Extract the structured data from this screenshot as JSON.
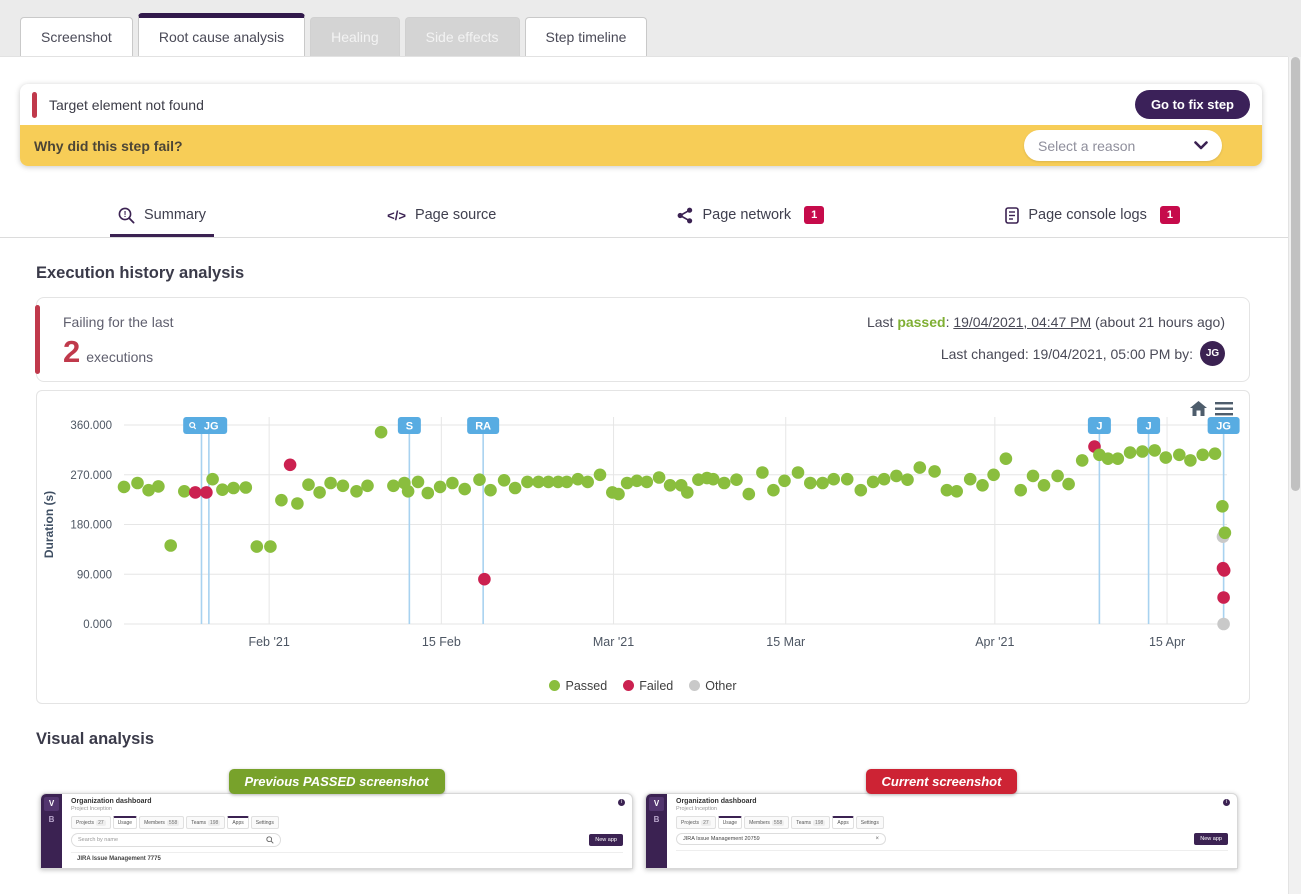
{
  "colors": {
    "accent_purple": "#3b2252",
    "tab_active_border": "#31194b",
    "alert_red": "#c0394b",
    "badge_red": "#c60b4b",
    "banner_yellow": "#f7cd57",
    "passed_green": "#8abe3e",
    "failed_red": "#cb2150",
    "other_gray": "#c9c9c9",
    "event_line_blue": "#7fbce9",
    "event_label_blue": "#58ace2",
    "prev_badge_green": "#78a22b",
    "curr_badge_red": "#cd2334"
  },
  "tabs": {
    "items": [
      {
        "label": "Screenshot",
        "state": "normal"
      },
      {
        "label": "Root cause analysis",
        "state": "active"
      },
      {
        "label": "Healing",
        "state": "disabled"
      },
      {
        "label": "Side effects",
        "state": "disabled"
      },
      {
        "label": "Step timeline",
        "state": "normal"
      }
    ]
  },
  "alert": {
    "message": "Target element not found",
    "action_label": "Go to fix step",
    "question": "Why did this step fail?",
    "reason_placeholder": "Select a reason"
  },
  "subtabs": {
    "items": [
      {
        "label": "Summary",
        "icon": "summary-magnifier-icon",
        "active": true,
        "badge": ""
      },
      {
        "label": "Page source",
        "icon": "code-icon",
        "active": false,
        "badge": ""
      },
      {
        "label": "Page network",
        "icon": "share-icon",
        "active": false,
        "badge": "1"
      },
      {
        "label": "Page console logs",
        "icon": "console-logs-icon",
        "active": false,
        "badge": "1"
      }
    ]
  },
  "execution_history": {
    "title": "Execution history analysis",
    "failing_label": "Failing for the last",
    "failing_count": "2",
    "failing_unit": "executions",
    "last_passed_prefix": "Last ",
    "last_passed_word": "passed",
    "last_passed_sep": ": ",
    "last_passed_value": "19/04/2021, 04:47 PM",
    "last_passed_suffix": " (about 21 hours ago)",
    "last_changed": "Last changed: 19/04/2021, 05:00 PM by:",
    "last_changed_avatar": "JG"
  },
  "chart_data": {
    "type": "scatter",
    "title": "",
    "xlabel": "",
    "ylabel": "Duration (s)",
    "x_unit": "days since 20 Jan 2021 (runs span 20 Jan 2021 - 19 Apr 2021)",
    "ylim": [
      0,
      360
    ],
    "grid": true,
    "legend_position": "bottom-center",
    "y_ticks": [
      {
        "v": 0,
        "label": "0.000"
      },
      {
        "v": 90,
        "label": "90.000"
      },
      {
        "v": 180,
        "label": "180.000"
      },
      {
        "v": 270,
        "label": "270.000"
      },
      {
        "v": 360,
        "label": "360.000"
      }
    ],
    "x_ticks": [
      {
        "day": 11.8,
        "label": "Feb '21"
      },
      {
        "day": 25.8,
        "label": "15 Feb"
      },
      {
        "day": 39.8,
        "label": "Mar '21"
      },
      {
        "day": 53.8,
        "label": "15 Mar"
      },
      {
        "day": 70.8,
        "label": "Apr '21"
      },
      {
        "day": 84.8,
        "label": "15 Apr"
      }
    ],
    "legend": [
      {
        "label": "Passed",
        "status": "p",
        "color": "#8abe3e"
      },
      {
        "label": "Failed",
        "status": "f",
        "color": "#cb2150"
      },
      {
        "label": "Other",
        "status": "o",
        "color": "#c9c9c9"
      }
    ],
    "annotations": [
      {
        "label": "JG",
        "days": [
          6.3,
          6.9
        ],
        "with_icon": true
      },
      {
        "label": "S",
        "days": [
          23.2
        ],
        "with_icon": false
      },
      {
        "label": "RA",
        "days": [
          29.2
        ],
        "with_icon": false
      },
      {
        "label": "J",
        "days": [
          79.3
        ],
        "with_icon": false
      },
      {
        "label": "J",
        "days": [
          83.3
        ],
        "with_icon": false
      },
      {
        "label": "JG",
        "days": [
          89.4
        ],
        "with_icon": false
      }
    ],
    "points": [
      [
        0,
        248,
        "p"
      ],
      [
        1.1,
        255,
        "p"
      ],
      [
        2,
        242,
        "p"
      ],
      [
        2.8,
        249,
        "p"
      ],
      [
        3.8,
        142,
        "p"
      ],
      [
        4.9,
        240,
        "p"
      ],
      [
        5.8,
        238,
        "f"
      ],
      [
        6.7,
        238,
        "f"
      ],
      [
        7.2,
        262,
        "p"
      ],
      [
        8,
        243,
        "p"
      ],
      [
        8.9,
        246,
        "p"
      ],
      [
        9.9,
        247,
        "p"
      ],
      [
        10.8,
        140,
        "p"
      ],
      [
        11.9,
        140,
        "p"
      ],
      [
        12.8,
        224,
        "p"
      ],
      [
        13.5,
        288,
        "f"
      ],
      [
        14.1,
        218,
        "p"
      ],
      [
        15,
        252,
        "p"
      ],
      [
        15.9,
        238,
        "p"
      ],
      [
        16.8,
        255,
        "p"
      ],
      [
        17.8,
        250,
        "p"
      ],
      [
        18.9,
        240,
        "p"
      ],
      [
        19.8,
        250,
        "p"
      ],
      [
        20.9,
        347,
        "p"
      ],
      [
        21.9,
        250,
        "p"
      ],
      [
        22.8,
        255,
        "p"
      ],
      [
        23.1,
        240,
        "p"
      ],
      [
        23.9,
        257,
        "p"
      ],
      [
        24.7,
        237,
        "p"
      ],
      [
        25.7,
        248,
        "p"
      ],
      [
        26.7,
        255,
        "p"
      ],
      [
        27.7,
        244,
        "p"
      ],
      [
        28.9,
        261,
        "p"
      ],
      [
        29.3,
        81,
        "f"
      ],
      [
        29.8,
        242,
        "p"
      ],
      [
        30.9,
        260,
        "p"
      ],
      [
        31.8,
        246,
        "p"
      ],
      [
        32.8,
        257,
        "p"
      ],
      [
        33.7,
        257,
        "p"
      ],
      [
        34.5,
        257,
        "p"
      ],
      [
        35.3,
        257,
        "p"
      ],
      [
        36,
        257,
        "p"
      ],
      [
        36.9,
        262,
        "p"
      ],
      [
        37.7,
        257,
        "p"
      ],
      [
        38.7,
        270,
        "p"
      ],
      [
        39.7,
        238,
        "p"
      ],
      [
        40.2,
        235,
        "p"
      ],
      [
        40.9,
        255,
        "p"
      ],
      [
        41.7,
        259,
        "p"
      ],
      [
        42.5,
        257,
        "p"
      ],
      [
        43.5,
        265,
        "p"
      ],
      [
        44.4,
        251,
        "p"
      ],
      [
        45.3,
        251,
        "p"
      ],
      [
        45.8,
        238,
        "p"
      ],
      [
        46.7,
        261,
        "p"
      ],
      [
        47.4,
        264,
        "p"
      ],
      [
        47.9,
        262,
        "p"
      ],
      [
        48.8,
        255,
        "p"
      ],
      [
        49.8,
        261,
        "p"
      ],
      [
        50.8,
        235,
        "p"
      ],
      [
        51.9,
        274,
        "p"
      ],
      [
        52.8,
        242,
        "p"
      ],
      [
        53.7,
        259,
        "p"
      ],
      [
        54.8,
        274,
        "p"
      ],
      [
        55.8,
        255,
        "p"
      ],
      [
        56.8,
        255,
        "p"
      ],
      [
        57.7,
        262,
        "p"
      ],
      [
        58.8,
        262,
        "p"
      ],
      [
        59.9,
        242,
        "p"
      ],
      [
        60.9,
        257,
        "p"
      ],
      [
        61.8,
        262,
        "p"
      ],
      [
        62.8,
        268,
        "p"
      ],
      [
        63.7,
        261,
        "p"
      ],
      [
        64.7,
        283,
        "p"
      ],
      [
        65.9,
        276,
        "p"
      ],
      [
        66.9,
        242,
        "p"
      ],
      [
        67.7,
        240,
        "p"
      ],
      [
        68.8,
        262,
        "p"
      ],
      [
        69.8,
        251,
        "p"
      ],
      [
        70.7,
        270,
        "p"
      ],
      [
        71.7,
        299,
        "p"
      ],
      [
        72.9,
        242,
        "p"
      ],
      [
        73.9,
        268,
        "p"
      ],
      [
        74.8,
        251,
        "p"
      ],
      [
        75.9,
        268,
        "p"
      ],
      [
        76.8,
        253,
        "p"
      ],
      [
        77.9,
        296,
        "p"
      ],
      [
        78.9,
        321,
        "f"
      ],
      [
        79.3,
        306,
        "p"
      ],
      [
        80,
        299,
        "p"
      ],
      [
        80.8,
        299,
        "p"
      ],
      [
        81.8,
        310,
        "p"
      ],
      [
        82.8,
        312,
        "p"
      ],
      [
        83.8,
        314,
        "p"
      ],
      [
        84.7,
        301,
        "p"
      ],
      [
        85.8,
        306,
        "p"
      ],
      [
        86.7,
        296,
        "p"
      ],
      [
        87.7,
        306,
        "p"
      ],
      [
        88.7,
        308,
        "p"
      ],
      [
        89.3,
        213,
        "p"
      ],
      [
        89.35,
        158,
        "o"
      ],
      [
        89.5,
        165,
        "p"
      ],
      [
        89.35,
        101,
        "f"
      ],
      [
        89.45,
        97,
        "f"
      ],
      [
        89.4,
        48,
        "f"
      ],
      [
        89.4,
        0,
        "o"
      ]
    ]
  },
  "visual": {
    "title": "Visual analysis",
    "previous_badge": "Previous PASSED screenshot",
    "current_badge": "Current screenshot",
    "mini": {
      "sidebar_top": "V",
      "sidebar_second": "B",
      "title": "Organization dashboard",
      "subtitle": "Project Inception",
      "info": "i",
      "tabs": [
        {
          "label": "Projects",
          "count": "27"
        },
        {
          "label": "Usage",
          "count": ""
        },
        {
          "label": "Members",
          "count": "558"
        },
        {
          "label": "Teams",
          "count": "198"
        },
        {
          "label": "Apps",
          "count": ""
        },
        {
          "label": "Settings",
          "count": ""
        }
      ],
      "new_app": "New app"
    },
    "previous": {
      "search_placeholder": "Search by name",
      "list_item": "JIRA Issue Management 7775"
    },
    "current": {
      "search_value": "JIRA Issue Management 20759",
      "list_item": ""
    }
  }
}
